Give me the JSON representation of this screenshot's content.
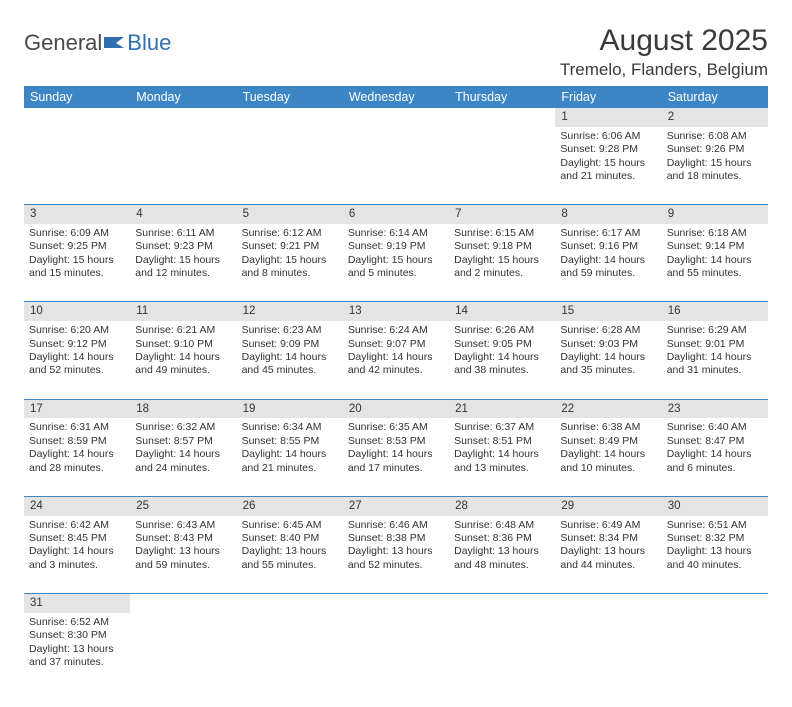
{
  "brand": {
    "part1": "General",
    "part2": "Blue"
  },
  "title": "August 2025",
  "location": "Tremelo, Flanders, Belgium",
  "colors": {
    "header_bg": "#3d86c6",
    "header_fg": "#ffffff",
    "daynum_bg": "#e4e4e4",
    "row_divider": "#3d86c6",
    "text": "#333333",
    "brand_blue": "#2f6fb0",
    "brand_gray": "#4a4a4a"
  },
  "weekdays": [
    "Sunday",
    "Monday",
    "Tuesday",
    "Wednesday",
    "Thursday",
    "Friday",
    "Saturday"
  ],
  "weeks": [
    [
      null,
      null,
      null,
      null,
      null,
      {
        "n": "1",
        "sunrise": "6:06 AM",
        "sunset": "9:28 PM",
        "dl": "15 hours and 21 minutes."
      },
      {
        "n": "2",
        "sunrise": "6:08 AM",
        "sunset": "9:26 PM",
        "dl": "15 hours and 18 minutes."
      }
    ],
    [
      {
        "n": "3",
        "sunrise": "6:09 AM",
        "sunset": "9:25 PM",
        "dl": "15 hours and 15 minutes."
      },
      {
        "n": "4",
        "sunrise": "6:11 AM",
        "sunset": "9:23 PM",
        "dl": "15 hours and 12 minutes."
      },
      {
        "n": "5",
        "sunrise": "6:12 AM",
        "sunset": "9:21 PM",
        "dl": "15 hours and 8 minutes."
      },
      {
        "n": "6",
        "sunrise": "6:14 AM",
        "sunset": "9:19 PM",
        "dl": "15 hours and 5 minutes."
      },
      {
        "n": "7",
        "sunrise": "6:15 AM",
        "sunset": "9:18 PM",
        "dl": "15 hours and 2 minutes."
      },
      {
        "n": "8",
        "sunrise": "6:17 AM",
        "sunset": "9:16 PM",
        "dl": "14 hours and 59 minutes."
      },
      {
        "n": "9",
        "sunrise": "6:18 AM",
        "sunset": "9:14 PM",
        "dl": "14 hours and 55 minutes."
      }
    ],
    [
      {
        "n": "10",
        "sunrise": "6:20 AM",
        "sunset": "9:12 PM",
        "dl": "14 hours and 52 minutes."
      },
      {
        "n": "11",
        "sunrise": "6:21 AM",
        "sunset": "9:10 PM",
        "dl": "14 hours and 49 minutes."
      },
      {
        "n": "12",
        "sunrise": "6:23 AM",
        "sunset": "9:09 PM",
        "dl": "14 hours and 45 minutes."
      },
      {
        "n": "13",
        "sunrise": "6:24 AM",
        "sunset": "9:07 PM",
        "dl": "14 hours and 42 minutes."
      },
      {
        "n": "14",
        "sunrise": "6:26 AM",
        "sunset": "9:05 PM",
        "dl": "14 hours and 38 minutes."
      },
      {
        "n": "15",
        "sunrise": "6:28 AM",
        "sunset": "9:03 PM",
        "dl": "14 hours and 35 minutes."
      },
      {
        "n": "16",
        "sunrise": "6:29 AM",
        "sunset": "9:01 PM",
        "dl": "14 hours and 31 minutes."
      }
    ],
    [
      {
        "n": "17",
        "sunrise": "6:31 AM",
        "sunset": "8:59 PM",
        "dl": "14 hours and 28 minutes."
      },
      {
        "n": "18",
        "sunrise": "6:32 AM",
        "sunset": "8:57 PM",
        "dl": "14 hours and 24 minutes."
      },
      {
        "n": "19",
        "sunrise": "6:34 AM",
        "sunset": "8:55 PM",
        "dl": "14 hours and 21 minutes."
      },
      {
        "n": "20",
        "sunrise": "6:35 AM",
        "sunset": "8:53 PM",
        "dl": "14 hours and 17 minutes."
      },
      {
        "n": "21",
        "sunrise": "6:37 AM",
        "sunset": "8:51 PM",
        "dl": "14 hours and 13 minutes."
      },
      {
        "n": "22",
        "sunrise": "6:38 AM",
        "sunset": "8:49 PM",
        "dl": "14 hours and 10 minutes."
      },
      {
        "n": "23",
        "sunrise": "6:40 AM",
        "sunset": "8:47 PM",
        "dl": "14 hours and 6 minutes."
      }
    ],
    [
      {
        "n": "24",
        "sunrise": "6:42 AM",
        "sunset": "8:45 PM",
        "dl": "14 hours and 3 minutes."
      },
      {
        "n": "25",
        "sunrise": "6:43 AM",
        "sunset": "8:43 PM",
        "dl": "13 hours and 59 minutes."
      },
      {
        "n": "26",
        "sunrise": "6:45 AM",
        "sunset": "8:40 PM",
        "dl": "13 hours and 55 minutes."
      },
      {
        "n": "27",
        "sunrise": "6:46 AM",
        "sunset": "8:38 PM",
        "dl": "13 hours and 52 minutes."
      },
      {
        "n": "28",
        "sunrise": "6:48 AM",
        "sunset": "8:36 PM",
        "dl": "13 hours and 48 minutes."
      },
      {
        "n": "29",
        "sunrise": "6:49 AM",
        "sunset": "8:34 PM",
        "dl": "13 hours and 44 minutes."
      },
      {
        "n": "30",
        "sunrise": "6:51 AM",
        "sunset": "8:32 PM",
        "dl": "13 hours and 40 minutes."
      }
    ],
    [
      {
        "n": "31",
        "sunrise": "6:52 AM",
        "sunset": "8:30 PM",
        "dl": "13 hours and 37 minutes."
      },
      null,
      null,
      null,
      null,
      null,
      null
    ]
  ],
  "labels": {
    "sunrise": "Sunrise:",
    "sunset": "Sunset:",
    "daylight": "Daylight:"
  }
}
